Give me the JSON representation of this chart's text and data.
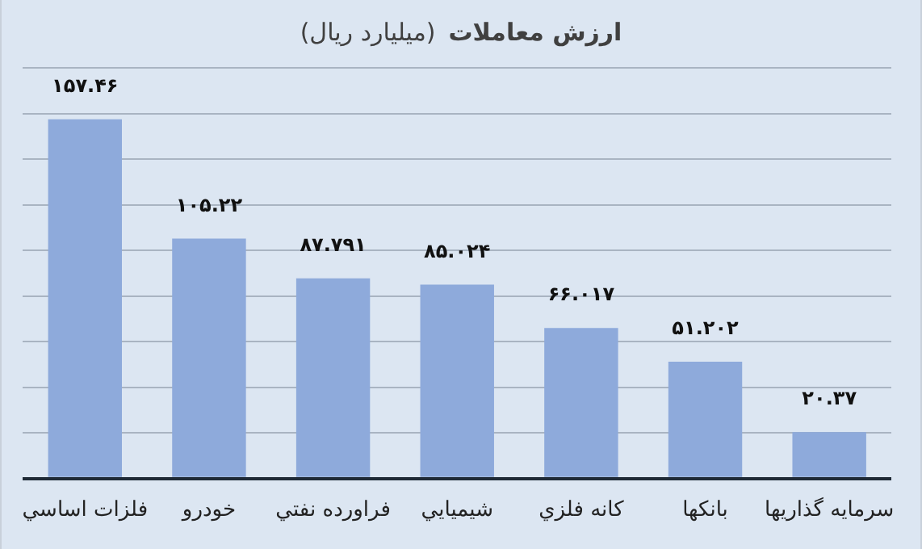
{
  "chart_data": {
    "type": "bar",
    "title": "ارزش معاملات",
    "subtitle": "(میلیارد ریال)",
    "categories": [
      "فلزات اساسي",
      "خودرو",
      "فراورده نفتي",
      "شيميايي",
      "کانه فلزي",
      "بانکها",
      "سرمایه گذاریها"
    ],
    "values": [
      157.46,
      105.22,
      87.791,
      85.024,
      66.017,
      51.202,
      20.37
    ],
    "value_labels": [
      "۱۵۷.۴۶",
      "۱۰۵.۲۲",
      "۸۷.۷۹۱",
      "۸۵.۰۲۴",
      "۶۶.۰۱۷",
      "۵۱.۲۰۲",
      "۲۰.۳۷"
    ],
    "color": "#8eaadb",
    "ylim": [
      0,
      180
    ],
    "yticks": [
      {
        "value": 0,
        "label": null
      },
      {
        "value": 20,
        "label": null
      },
      {
        "value": 40,
        "label": null
      },
      {
        "value": 60,
        "label": null
      },
      {
        "value": 80,
        "label": null
      },
      {
        "value": 100,
        "label": null
      },
      {
        "value": 120,
        "label": null
      },
      {
        "value": 140,
        "label": null
      },
      {
        "value": 160,
        "label": null
      },
      {
        "value": 180,
        "label": null
      }
    ],
    "grid": "y",
    "tick_labels": "x",
    "legend": false
  }
}
